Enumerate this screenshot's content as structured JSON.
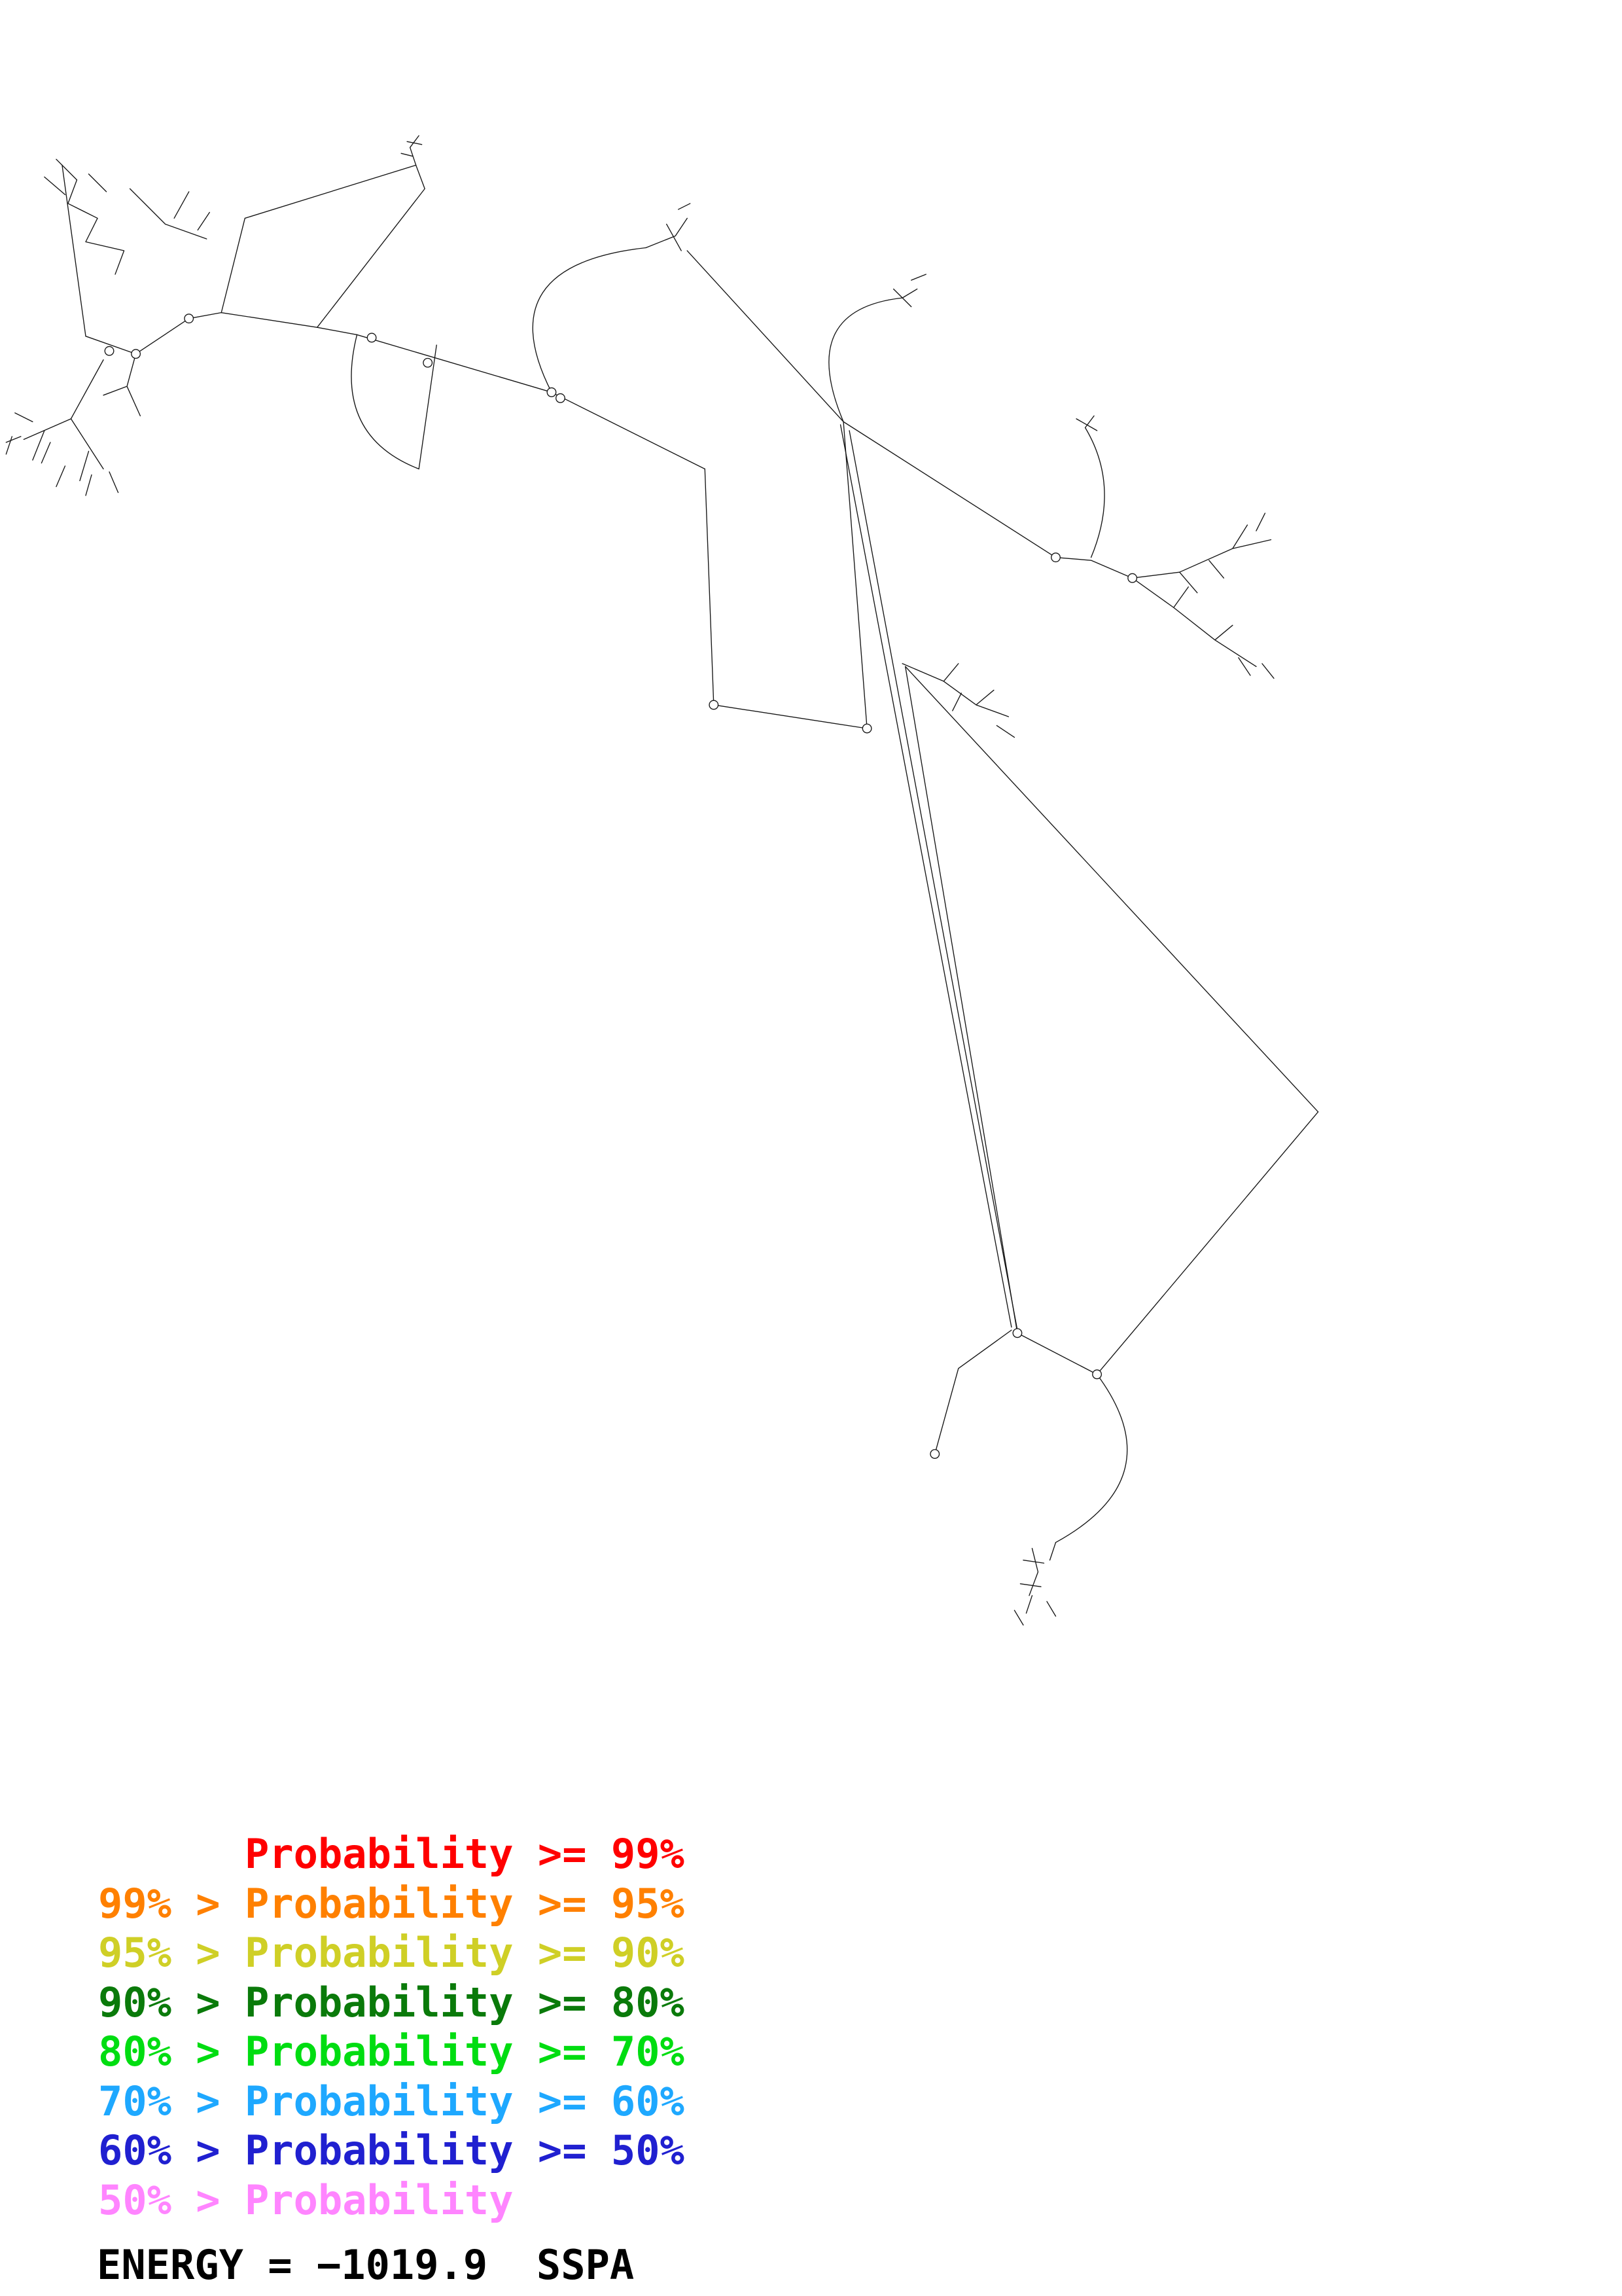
{
  "energy": {
    "text": "ENERGY = −1019.9  SSPA"
  },
  "legend": {
    "items": [
      {
        "label": "Probability >= 99%",
        "text": "      Probability >= 99%",
        "color": "#ff0000"
      },
      {
        "label": "99% > Probability >= 95%",
        "text": "99% > Probability >= 95%",
        "color": "#ff8000"
      },
      {
        "label": "95% > Probability >= 90%",
        "text": "95% > Probability >= 90%",
        "color": "#cfcf26"
      },
      {
        "label": "90% > Probability >= 80%",
        "text": "90% > Probability >= 80%",
        "color": "#0a7a0a"
      },
      {
        "label": "80% > Probability >= 70%",
        "text": "80% > Probability >= 70%",
        "color": "#00dd11"
      },
      {
        "label": "70% > Probability >= 60%",
        "text": "70% > Probability >= 60%",
        "color": "#1ea8ff"
      },
      {
        "label": "60% > Probability >= 50%",
        "text": "60% > Probability >= 50%",
        "color": "#2020d0"
      },
      {
        "label": "50% > Probability",
        "text": "50% > Probability",
        "color": "#ff85ff"
      }
    ]
  },
  "structure": {
    "stroke": "#161616",
    "paths": [
      "M38,108 L52,122 L46,138 L66,148 L58,164 L84,170 L78,186",
      "M42,112 L50,170 L58,228",
      "M30,120 L44,132 M60,118 L72,130 M88,128 L102,142 M96,136 L112,152 L140,162 M118,148 L128,130 M134,156 L142,144",
      "M58,228 L92,240 L128,216 L150,212",
      "M70,244 L48,284 L16,298 M48,284 L70,318 M30,292 L22,312 M60,306 L54,326 M8,296 L4,308",
      "M14,296 L4,300 M22,286 L10,280 M34,300 L28,314 M44,316 L38,330 M62,322 L58,336 M74,320 L80,334",
      "M92,240 L86,262 L95,282 M86,262 L70,268",
      "M150,212 L166,148 L282,112",
      "M215,222 L288,128 L282,112",
      "M282,112 L278,100 L284,92 M276,96 L286,98 M272,104 L280,106",
      "M150,212 L215,222",
      "M215,222 L242,227",
      "M242,227 Q225,295 284,318",
      "M284,318 L296,234",
      "M242,227 L374,266",
      "M374,266 Q330,180 438,168",
      "M438,168 L458,160 L466,148 M452,152 L462,170 M460,142 L468,138",
      "M374,266 L478,318",
      "M478,318 L484,478",
      "M484,478 L588,494",
      "M588,494 L572,286",
      "M572,286 L466,170",
      "M572,286 Q540,210 612,202",
      "M612,202 L622,196 M606,196 L618,208 M618,190 L628,186",
      "M572,286 L716,378",
      "M736,290 Q760,330 740,378 M736,290 L742,282 M730,284 L744,292",
      "M716,378 L740,380 L768,392",
      "M768,392 L800,388 L836,372 L862,366 M800,388 L812,402 M836,372 L846,356 M820,380 L830,392 M852,360 L858,348",
      "M768,392 L796,412 L824,434 L852,452 M796,412 L806,398 M824,434 L836,424 M840,446 L848,458 M856,450 L864,460",
      "M612,450 L640,462 L662,478 L684,486 M640,462 L650,450 M662,478 L674,468 M676,492 L688,500 M652,470 L646,482",
      "M570,288 L686,900",
      "M576,292 L690,902",
      "M614,452 L690,904",
      "M614,452 L894,754",
      "M894,754 L744,932",
      "M686,902 L650,928 L634,986",
      "M690,904 L744,932",
      "M744,932 Q796,1002 716,1046",
      "M716,1046 L712,1058",
      "M700,1050 L704,1066 L698,1082 M694,1058 L708,1060 M692,1074 L706,1076 M700,1082 L696,1094 M710,1086 L716,1096 M688,1092 L694,1102"
    ],
    "dots": [
      [
        74,
        238
      ],
      [
        92,
        240
      ],
      [
        128,
        216
      ],
      [
        252,
        229
      ],
      [
        290,
        246
      ],
      [
        374,
        266
      ],
      [
        380,
        270
      ],
      [
        484,
        478
      ],
      [
        588,
        494
      ],
      [
        716,
        378
      ],
      [
        768,
        392
      ],
      [
        690,
        904
      ],
      [
        744,
        932
      ],
      [
        634,
        986
      ]
    ]
  }
}
